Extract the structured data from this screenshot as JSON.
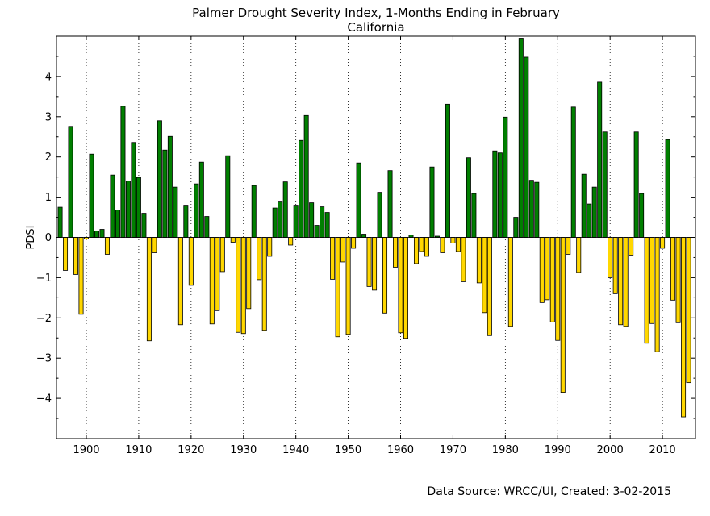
{
  "chart_data": {
    "type": "bar",
    "title": "Palmer Drought Severity Index, 1-Months Ending in February",
    "subtitle": "California",
    "xlabel": "",
    "ylabel": "PDSI",
    "xlim": [
      1894.3,
      2016.3
    ],
    "ylim": [
      -5,
      5
    ],
    "x_ticks": [
      1900,
      1910,
      1920,
      1930,
      1940,
      1950,
      1960,
      1970,
      1980,
      1990,
      2000,
      2010
    ],
    "y_ticks": [
      -4,
      -3,
      -2,
      -1,
      0,
      1,
      2,
      3,
      4
    ],
    "y_tick_labels": [
      "−4",
      "−3",
      "−2",
      "−1",
      "0",
      "1",
      "2",
      "3",
      "4"
    ],
    "grid": "vertical dotted at x ticks",
    "colors": {
      "positive": "#007f00",
      "negative": "#ffd700",
      "edge": "#000000"
    },
    "start_year": 1895,
    "years": [
      1895,
      1896,
      1897,
      1898,
      1899,
      1900,
      1901,
      1902,
      1903,
      1904,
      1905,
      1906,
      1907,
      1908,
      1909,
      1910,
      1911,
      1912,
      1913,
      1914,
      1915,
      1916,
      1917,
      1918,
      1919,
      1920,
      1921,
      1922,
      1923,
      1924,
      1925,
      1926,
      1927,
      1928,
      1929,
      1930,
      1931,
      1932,
      1933,
      1934,
      1935,
      1936,
      1937,
      1938,
      1939,
      1940,
      1941,
      1942,
      1943,
      1944,
      1945,
      1946,
      1947,
      1948,
      1949,
      1950,
      1951,
      1952,
      1953,
      1954,
      1955,
      1956,
      1957,
      1958,
      1959,
      1960,
      1961,
      1962,
      1963,
      1964,
      1965,
      1966,
      1967,
      1968,
      1969,
      1970,
      1971,
      1972,
      1973,
      1974,
      1975,
      1976,
      1977,
      1978,
      1979,
      1980,
      1981,
      1982,
      1983,
      1984,
      1985,
      1986,
      1987,
      1988,
      1989,
      1990,
      1991,
      1992,
      1993,
      1994,
      1995,
      1996,
      1997,
      1998,
      1999,
      2000,
      2001,
      2002,
      2003,
      2004,
      2005,
      2006,
      2007,
      2008,
      2009,
      2010,
      2011,
      2012,
      2013,
      2014,
      2015
    ],
    "values": [
      0.75,
      -0.82,
      2.76,
      -0.92,
      -1.91,
      -0.04,
      2.07,
      0.16,
      0.2,
      -0.42,
      1.55,
      0.68,
      3.26,
      1.4,
      2.36,
      1.49,
      0.6,
      -2.57,
      -0.38,
      2.9,
      2.17,
      2.51,
      1.25,
      -2.17,
      0.8,
      -1.19,
      1.33,
      1.87,
      0.52,
      -2.15,
      -1.82,
      -0.85,
      2.03,
      -0.12,
      -2.36,
      -2.39,
      -1.77,
      1.29,
      -1.05,
      -2.31,
      -0.47,
      0.73,
      0.9,
      1.38,
      -0.19,
      0.8,
      2.41,
      3.03,
      0.86,
      0.3,
      0.76,
      0.62,
      -1.04,
      -2.47,
      -0.61,
      -2.41,
      -0.27,
      1.85,
      0.08,
      -1.22,
      -1.31,
      1.12,
      -1.88,
      1.66,
      -0.74,
      -2.37,
      -2.51,
      0.06,
      -0.65,
      -0.35,
      -0.47,
      1.75,
      0.03,
      -0.38,
      3.31,
      -0.14,
      -0.35,
      -1.1,
      1.98,
      1.09,
      -1.13,
      -1.87,
      -2.44,
      2.15,
      2.1,
      2.99,
      -2.21,
      0.5,
      4.95,
      4.48,
      1.42,
      1.37,
      -1.62,
      -1.55,
      -2.1,
      -2.56,
      -3.85,
      -0.42,
      3.24,
      -0.87,
      1.57,
      0.83,
      1.25,
      3.86,
      2.62,
      -1.0,
      -1.4,
      -2.17,
      -2.21,
      -0.44,
      2.62,
      1.09,
      -2.63,
      -2.14,
      -2.84,
      -0.27,
      2.43,
      -1.56,
      -2.12,
      -4.46,
      -3.61
    ]
  },
  "source": "Data Source: WRCC/UI, Created: 3-02-2015"
}
